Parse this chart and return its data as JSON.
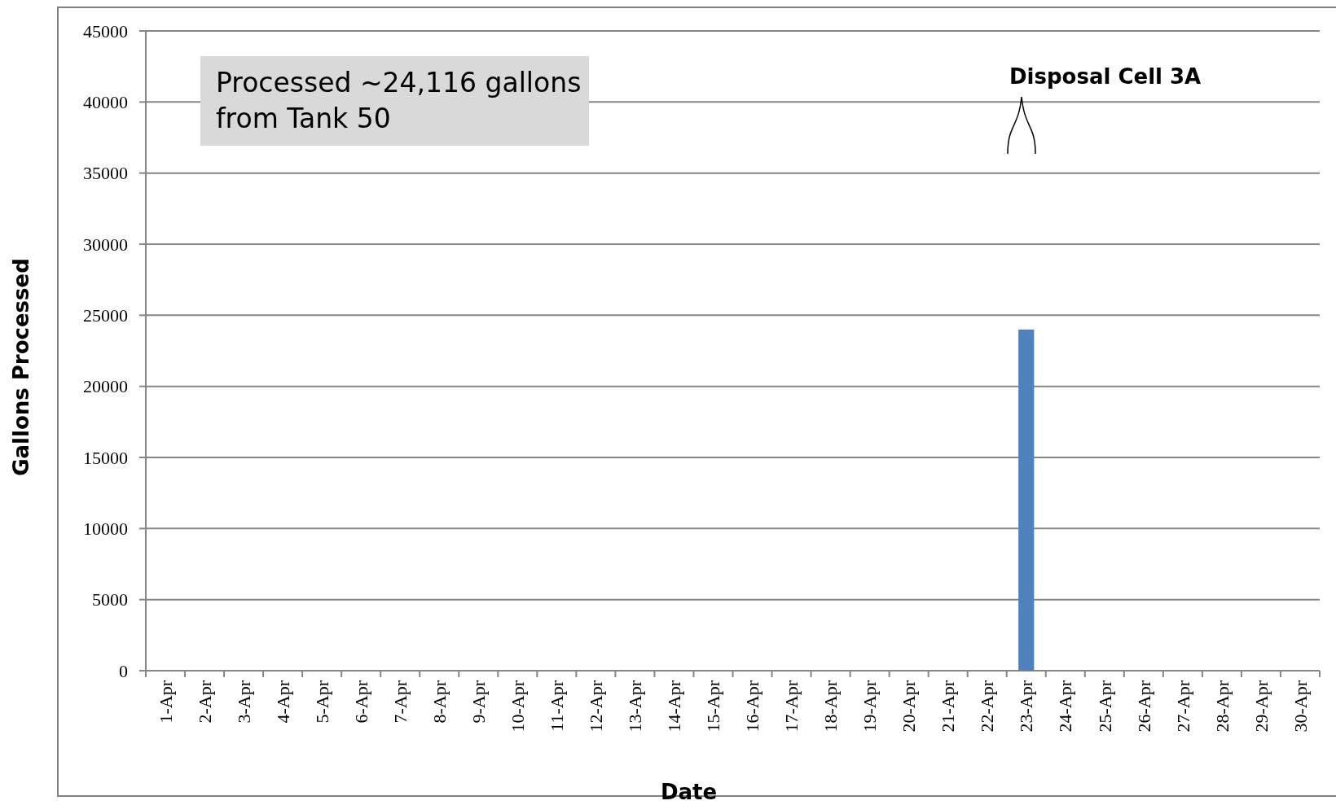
{
  "chart_data": {
    "type": "bar",
    "xlabel": "Date",
    "ylabel": "Gallons Processed",
    "categories": [
      "1-Apr",
      "2-Apr",
      "3-Apr",
      "4-Apr",
      "5-Apr",
      "6-Apr",
      "7-Apr",
      "8-Apr",
      "9-Apr",
      "10-Apr",
      "11-Apr",
      "12-Apr",
      "13-Apr",
      "14-Apr",
      "15-Apr",
      "16-Apr",
      "17-Apr",
      "18-Apr",
      "19-Apr",
      "20-Apr",
      "21-Apr",
      "22-Apr",
      "23-Apr",
      "24-Apr",
      "25-Apr",
      "26-Apr",
      "27-Apr",
      "28-Apr",
      "29-Apr",
      "30-Apr"
    ],
    "values": [
      0,
      0,
      0,
      0,
      0,
      0,
      0,
      0,
      0,
      0,
      0,
      0,
      0,
      0,
      0,
      0,
      0,
      0,
      0,
      0,
      0,
      0,
      24000,
      0,
      0,
      0,
      0,
      0,
      0,
      0
    ],
    "color": "#4f81bd",
    "ylim": [
      0,
      45000
    ],
    "yticks": [
      0,
      5000,
      10000,
      15000,
      20000,
      25000,
      30000,
      35000,
      40000,
      45000
    ],
    "grid": "y",
    "annotations": [
      "Processed ~24,116 gallons\nfrom Tank 50",
      "Disposal Cell 3A"
    ]
  }
}
